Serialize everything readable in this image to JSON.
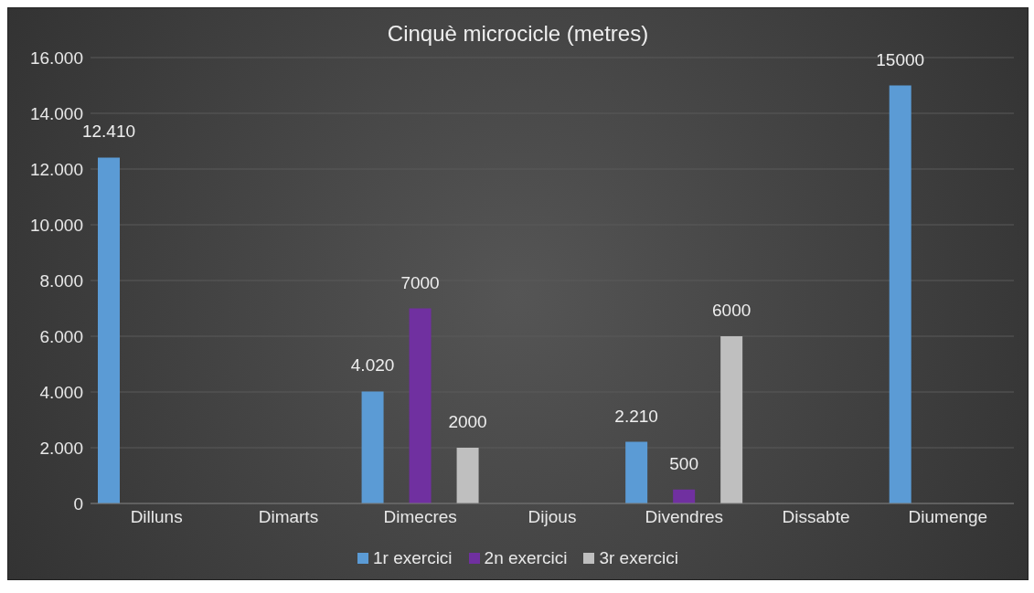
{
  "chart_data": {
    "type": "bar",
    "title": "Cinquè microcicle (metres)",
    "categories": [
      "Dilluns",
      "Dimarts",
      "Dimecres",
      "Dijous",
      "Divendres",
      "Dissabte",
      "Diumenge"
    ],
    "series": [
      {
        "name": "1r exercici",
        "color": "#5b9bd5",
        "values": [
          12410,
          null,
          4020,
          null,
          2210,
          null,
          15000
        ],
        "value_labels": [
          "12.410",
          null,
          "4.020",
          null,
          "2.210",
          null,
          "15000"
        ]
      },
      {
        "name": "2n exercici",
        "color": "#7030a0",
        "values": [
          null,
          null,
          7000,
          null,
          500,
          null,
          null
        ],
        "value_labels": [
          null,
          null,
          "7000",
          null,
          "500",
          null,
          null
        ]
      },
      {
        "name": "3r exercici",
        "color": "#bfbfbf",
        "values": [
          null,
          null,
          2000,
          null,
          6000,
          null,
          null
        ],
        "value_labels": [
          null,
          null,
          "2000",
          null,
          "6000",
          null,
          null
        ]
      }
    ],
    "ylim": [
      0,
      16000
    ],
    "yticks": [
      {
        "value": 0,
        "label": "0"
      },
      {
        "value": 2000,
        "label": "2.000"
      },
      {
        "value": 4000,
        "label": "4.000"
      },
      {
        "value": 6000,
        "label": "6.000"
      },
      {
        "value": 8000,
        "label": "8.000"
      },
      {
        "value": 10000,
        "label": "10.000"
      },
      {
        "value": 12000,
        "label": "12.000"
      },
      {
        "value": 14000,
        "label": "14.000"
      },
      {
        "value": 16000,
        "label": "16.000"
      }
    ],
    "grid": "y",
    "legend": "bottom"
  }
}
